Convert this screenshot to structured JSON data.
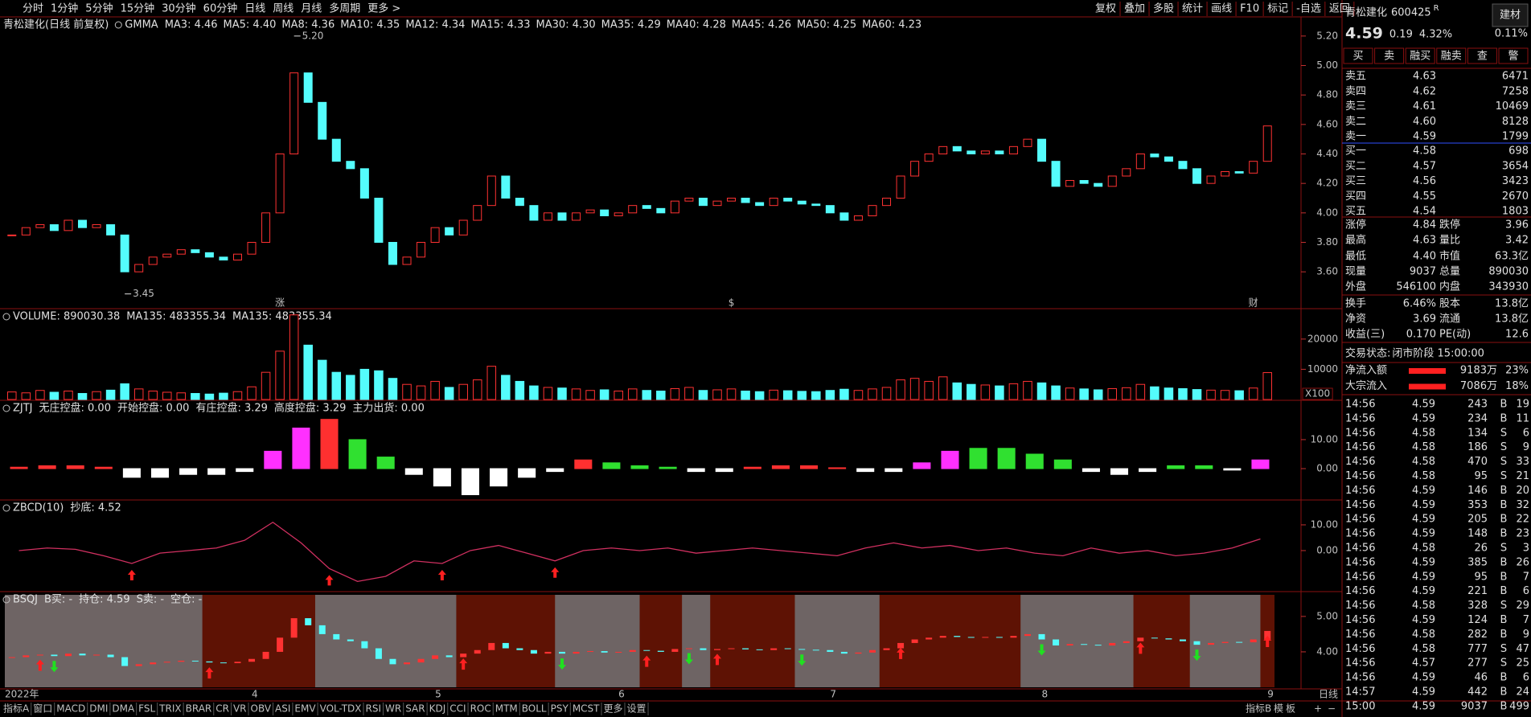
{
  "toolbar": {
    "periods": [
      "分时",
      "1分钟",
      "5分钟",
      "15分钟",
      "30分钟",
      "60分钟",
      "日线",
      "周线",
      "月线",
      "多周期",
      "更多 >"
    ],
    "active_period": 6,
    "buttons": [
      "复权",
      "叠加",
      "多股",
      "统计",
      "画线",
      "F10",
      "标记",
      "-自选",
      "返回"
    ]
  },
  "chart_data": [
    {
      "type": "candlestick",
      "title": "青松建化(日线 前复权)",
      "indicator": "GMMA",
      "legend": [
        {
          "text": "MA3: 4.46",
          "color": "#b8a8ff"
        },
        {
          "text": "MA5: 4.40",
          "color": "#b8a8ff"
        },
        {
          "text": "MA8: 4.36",
          "color": "#b8a8ff"
        },
        {
          "text": "MA10: 4.35",
          "color": "#b8a8ff"
        },
        {
          "text": "MA12: 4.34",
          "color": "#b8a8ff"
        },
        {
          "text": "MA15: 4.33",
          "color": "#b8a8ff"
        },
        {
          "text": "MA30: 4.30",
          "color": "#ff9a30"
        },
        {
          "text": "MA35: 4.29",
          "color": "#ff9a30"
        },
        {
          "text": "MA40: 4.28",
          "color": "#ff9a30"
        },
        {
          "text": "MA45: 4.26",
          "color": "#ff9a30"
        },
        {
          "text": "MA50: 4.25",
          "color": "#ff9a30"
        },
        {
          "text": "MA60: 4.23",
          "color": "#ff9a30"
        }
      ],
      "categories": [
        "2022年",
        null,
        null,
        null,
        null,
        null,
        null,
        null,
        null,
        null,
        null,
        null,
        null,
        null,
        null,
        null,
        null,
        "4",
        null,
        null,
        null,
        null,
        null,
        null,
        null,
        null,
        null,
        null,
        null,
        null,
        "5",
        null,
        null,
        null,
        null,
        null,
        null,
        null,
        null,
        null,
        null,
        null,
        null,
        "6",
        null,
        null,
        null,
        null,
        null,
        null,
        null,
        null,
        null,
        null,
        null,
        null,
        null,
        null,
        "7",
        null,
        null,
        null,
        null,
        null,
        null,
        null,
        null,
        null,
        null,
        null,
        null,
        null,
        null,
        "8",
        null,
        null,
        null,
        null,
        null,
        null,
        null,
        null,
        null,
        null,
        null,
        null,
        null,
        null,
        null,
        "9",
        null
      ],
      "closes": [
        3.85,
        3.9,
        3.92,
        3.88,
        3.95,
        3.9,
        3.92,
        3.85,
        3.6,
        3.65,
        3.7,
        3.72,
        3.75,
        3.73,
        3.7,
        3.68,
        3.72,
        3.8,
        4.0,
        4.4,
        4.95,
        4.75,
        4.5,
        4.35,
        4.3,
        4.1,
        3.8,
        3.65,
        3.7,
        3.8,
        3.9,
        3.85,
        3.95,
        4.05,
        4.25,
        4.1,
        4.05,
        3.95,
        4.0,
        3.95,
        4.0,
        4.02,
        3.98,
        4.0,
        4.05,
        4.03,
        4.0,
        4.08,
        4.1,
        4.05,
        4.08,
        4.1,
        4.07,
        4.05,
        4.1,
        4.08,
        4.06,
        4.05,
        4.0,
        3.95,
        3.98,
        4.05,
        4.1,
        4.25,
        4.35,
        4.4,
        4.45,
        4.42,
        4.4,
        4.42,
        4.4,
        4.45,
        4.5,
        4.35,
        4.18,
        4.22,
        4.2,
        4.18,
        4.25,
        4.3,
        4.4,
        4.38,
        4.35,
        4.3,
        4.2,
        4.25,
        4.28,
        4.27,
        4.35,
        4.59
      ],
      "up_color": "#ff3232",
      "down_color": "#54fcfc",
      "ylim": [
        3.35,
        5.33
      ],
      "yticks": [
        {
          "value": 3.6,
          "label": "3.60"
        },
        {
          "value": 3.8,
          "label": "3.80"
        },
        {
          "value": 4.0,
          "label": "4.00"
        },
        {
          "value": 4.2,
          "label": "4.20"
        },
        {
          "value": 4.4,
          "label": "4.40"
        },
        {
          "value": 4.6,
          "label": "4.60"
        },
        {
          "value": 4.8,
          "label": "4.80"
        },
        {
          "value": 5.0,
          "label": "5.00"
        },
        {
          "value": 5.2,
          "label": "5.20"
        }
      ],
      "annotations": [
        {
          "label": "5.20",
          "value": 5.2,
          "index": 20
        },
        {
          "label": "3.45",
          "value": 3.45,
          "index": 8
        }
      ],
      "events": [
        {
          "label": "涨",
          "index": 19,
          "color": "#ff4040"
        },
        {
          "label": "$",
          "index": 51,
          "color": "#ff4040"
        },
        {
          "label": "财",
          "index": 88,
          "color": "#5090ff"
        }
      ]
    },
    {
      "type": "bar",
      "legend": [
        {
          "text": "VOLUME: 890030.38",
          "color": "#e0e0e0"
        },
        {
          "text": "MA135: 483355.34",
          "color": "#e0e0e0"
        },
        {
          "text": "MA135: 483355.34",
          "color": "#ffd000"
        }
      ],
      "values": [
        2500,
        2200,
        3000,
        2400,
        2800,
        2000,
        2600,
        3100,
        5200,
        3500,
        2800,
        2400,
        2200,
        2000,
        1800,
        2100,
        2600,
        4200,
        9000,
        16000,
        28000,
        18000,
        13000,
        9000,
        8000,
        10000,
        9500,
        7000,
        5000,
        4500,
        6000,
        4000,
        5000,
        6500,
        11000,
        8000,
        6000,
        4500,
        4000,
        3800,
        3500,
        3000,
        3200,
        2800,
        3500,
        3000,
        2800,
        3600,
        4000,
        3000,
        3200,
        3500,
        2800,
        2600,
        3100,
        2900,
        2700,
        2600,
        3000,
        3400,
        3000,
        3500,
        4000,
        6500,
        7000,
        6000,
        7500,
        5500,
        5000,
        4800,
        4500,
        5200,
        6000,
        5500,
        4500,
        3800,
        3500,
        3200,
        3600,
        3900,
        5000,
        4200,
        3800,
        3600,
        3300,
        3100,
        3000,
        2900,
        3800,
        8900
      ],
      "ylim": [
        0,
        29000
      ],
      "yticks": [
        10000,
        20000
      ],
      "unit": "X100"
    },
    {
      "type": "bar",
      "legend": [
        {
          "text": "ZJTJ",
          "color": "#e0e0e0"
        },
        {
          "text": "无庄控盘: 0.00",
          "color": "#e0e0e0"
        },
        {
          "text": "开始控盘: 0.00",
          "color": "#a8a000"
        },
        {
          "text": "有庄控盘: 3.29",
          "color": "#ff3030"
        },
        {
          "text": "高度控盘: 3.29",
          "color": "#ff40ff"
        },
        {
          "text": "主力出货: 0.00",
          "color": "#30e030"
        }
      ],
      "values": [
        0.5,
        1,
        1,
        0.5,
        -3,
        -3,
        -2,
        -2,
        -1,
        6,
        14,
        17,
        10,
        4,
        -2,
        -6,
        -9,
        -6,
        -3,
        -1,
        3,
        2,
        1,
        0.5,
        -1,
        -1,
        0.5,
        1,
        1,
        0.3,
        -1,
        -1,
        2,
        6,
        7,
        7,
        5,
        3,
        -1,
        -2,
        -1,
        1,
        1,
        -0.5,
        3
      ],
      "colors": [
        "#ff3030",
        "#ff3030",
        "#ff3030",
        "#ff3030",
        "#ffffff",
        "#ffffff",
        "#ffffff",
        "#ffffff",
        "#ffffff",
        "#ff30ff",
        "#ff30ff",
        "#ff3030",
        "#30e030",
        "#30e030",
        "#ffffff",
        "#ffffff",
        "#ffffff",
        "#ffffff",
        "#ffffff",
        "#ffffff",
        "#ff3030",
        "#30e030",
        "#30e030",
        "#30e030",
        "#ffffff",
        "#ffffff",
        "#ff3030",
        "#ff3030",
        "#ff3030",
        "#ff3030",
        "#ffffff",
        "#ffffff",
        "#ff30ff",
        "#ff30ff",
        "#30e030",
        "#30e030",
        "#30e030",
        "#30e030",
        "#ffffff",
        "#ffffff",
        "#ffffff",
        "#30e030",
        "#30e030",
        "#ffffff",
        "#ff30ff"
      ],
      "ylim": [
        -9.7,
        21.9
      ],
      "yticks": [
        {
          "value": 0,
          "label": "0.00"
        },
        {
          "value": 10,
          "label": "10.00"
        }
      ]
    },
    {
      "type": "line",
      "legend": [
        {
          "text": "ZBCD(10)",
          "color": "#e0e0e0"
        },
        {
          "text": "抄底: 4.52",
          "color": "#ff40a0"
        }
      ],
      "values": [
        0,
        1,
        0.5,
        -2,
        -5,
        -1,
        0,
        1,
        4,
        11,
        3,
        -7,
        -12,
        -10,
        -4,
        -5,
        0,
        2,
        -1,
        -4,
        0,
        1,
        0,
        1,
        -1,
        0,
        1,
        0,
        -1,
        -2,
        1,
        3,
        1,
        2,
        0,
        1,
        -1,
        -2,
        1,
        -1,
        0,
        -2,
        -1,
        1,
        4.52
      ],
      "color": "#d03060",
      "signals": [
        4,
        11,
        15,
        19
      ],
      "ylim": [
        -14.7,
        17.8
      ],
      "yticks": [
        {
          "value": 0,
          "label": "0.00"
        },
        {
          "value": 10,
          "label": "10.00"
        }
      ]
    },
    {
      "type": "signal",
      "legend": [
        {
          "text": "BSQJ",
          "color": "#e0e0e0"
        },
        {
          "text": "B买: -",
          "color": "#ff40ff"
        },
        {
          "text": "持仓: 4.59",
          "color": "#ff3030"
        },
        {
          "text": "S卖: -",
          "color": "#e0e0e0"
        },
        {
          "text": "空仓: -",
          "color": "#30e030"
        }
      ],
      "hold": [
        [
          14,
          22
        ],
        [
          32,
          39
        ],
        [
          45,
          48
        ],
        [
          50,
          56
        ],
        [
          62,
          72
        ],
        [
          80,
          84
        ],
        [
          89,
          90
        ]
      ],
      "buy_signals": [
        2,
        14,
        32,
        45,
        50,
        63,
        80,
        89
      ],
      "sell_signals": [
        3,
        39,
        48,
        56,
        73,
        84
      ],
      "ylim": [
        3.0,
        5.61
      ],
      "yticks": [
        {
          "value": 4,
          "label": "4.00"
        },
        {
          "value": 5,
          "label": "5.00"
        }
      ]
    }
  ],
  "quote": {
    "name": "青松建化",
    "code": "600425",
    "flag": "R",
    "price": "4.59",
    "change": "0.19",
    "pct": "4.32%",
    "sector": "建材",
    "sector_pct": "0.11%",
    "buttons": [
      {
        "text": "买",
        "color": "#ff4040"
      },
      {
        "text": "卖",
        "color": "#54fcfc"
      },
      {
        "text": "融买",
        "color": "#ff4040"
      },
      {
        "text": "融卖",
        "color": "#54fcfc"
      },
      {
        "text": "查",
        "color": "#e0e0e0"
      },
      {
        "text": "警",
        "color": "#e0e0e0"
      }
    ],
    "asks": [
      [
        "卖五",
        "4.63",
        "6471"
      ],
      [
        "卖四",
        "4.62",
        "7258"
      ],
      [
        "卖三",
        "4.61",
        "10469"
      ],
      [
        "卖二",
        "4.60",
        "8128"
      ],
      [
        "卖一",
        "4.59",
        "1799"
      ]
    ],
    "bids": [
      [
        "买一",
        "4.58",
        "698"
      ],
      [
        "买二",
        "4.57",
        "3654"
      ],
      [
        "买三",
        "4.56",
        "3423"
      ],
      [
        "买四",
        "4.55",
        "2670"
      ],
      [
        "买五",
        "4.54",
        "1803"
      ]
    ],
    "stats": [
      {
        "cells": [
          "涨停",
          "4.84",
          "跌停",
          "3.96"
        ],
        "colors": [
          "#ff4040",
          "#40ff40"
        ]
      },
      {
        "cells": [
          "最高",
          "4.63",
          "量比",
          "3.42"
        ],
        "colors": [
          "#ff4040",
          "#ff40ff"
        ]
      },
      {
        "cells": [
          "最低",
          "4.40",
          "市值",
          "63.3亿"
        ],
        "colors": [
          "#ffffff",
          "#e0e0e0"
        ]
      },
      {
        "cells": [
          "现量",
          "9037",
          "总量",
          "890030"
        ],
        "colors": [
          "#ff40ff",
          "#e0e0e0"
        ]
      },
      {
        "cells": [
          "外盘",
          "546100",
          "内盘",
          "343930"
        ],
        "colors": [
          "#ff4040",
          "#40ff40"
        ]
      },
      {
        "cells": [
          "换手",
          "6.46%",
          "股本",
          "13.8亿"
        ],
        "colors": [
          "#e0e0e0",
          "#e0e0e0"
        ]
      },
      {
        "cells": [
          "净资",
          "3.69",
          "流通",
          "13.8亿"
        ],
        "colors": [
          "#e0e0e0",
          "#e0e0e0"
        ]
      },
      {
        "cells": [
          "收益(三)",
          "0.170",
          "PE(动)",
          "12.6"
        ],
        "colors": [
          "#e0e0e0",
          "#e0e0e0"
        ]
      }
    ],
    "status_label": "交易状态:",
    "status": "闭市阶段 15:00:00",
    "flows": [
      [
        "净流入额",
        "9183万",
        "23%"
      ],
      [
        "大宗流入",
        "7086万",
        "18%"
      ]
    ],
    "trades": [
      [
        "14:56",
        "4.59",
        "243",
        "B",
        "19"
      ],
      [
        "14:56",
        "4.59",
        "234",
        "B",
        "11"
      ],
      [
        "14:56",
        "4.58",
        "134",
        "S",
        "6"
      ],
      [
        "14:56",
        "4.58",
        "186",
        "S",
        "9"
      ],
      [
        "14:56",
        "4.58",
        "470",
        "S",
        "33"
      ],
      [
        "14:56",
        "4.58",
        "95",
        "S",
        "21"
      ],
      [
        "14:56",
        "4.59",
        "146",
        "B",
        "20"
      ],
      [
        "14:56",
        "4.59",
        "353",
        "B",
        "32"
      ],
      [
        "14:56",
        "4.59",
        "205",
        "B",
        "22"
      ],
      [
        "14:56",
        "4.59",
        "148",
        "B",
        "23"
      ],
      [
        "14:56",
        "4.58",
        "26",
        "S",
        "3"
      ],
      [
        "14:56",
        "4.59",
        "385",
        "B",
        "26"
      ],
      [
        "14:56",
        "4.59",
        "95",
        "B",
        "7"
      ],
      [
        "14:56",
        "4.59",
        "221",
        "B",
        "6"
      ],
      [
        "14:56",
        "4.58",
        "328",
        "S",
        "29"
      ],
      [
        "14:56",
        "4.59",
        "124",
        "B",
        "7"
      ],
      [
        "14:56",
        "4.58",
        "282",
        "B",
        "9"
      ],
      [
        "14:56",
        "4.58",
        "777",
        "S",
        "47"
      ],
      [
        "14:56",
        "4.57",
        "277",
        "S",
        "25"
      ],
      [
        "14:56",
        "4.59",
        "46",
        "B",
        "6"
      ],
      [
        "14:57",
        "4.59",
        "442",
        "B",
        "24"
      ],
      [
        "15:00",
        "4.59",
        "9037",
        "B",
        "499"
      ]
    ]
  },
  "tabs": [
    "指标A",
    "窗口",
    "MACD",
    "DMI",
    "DMA",
    "FSL",
    "TRIX",
    "BRAR",
    "CR",
    "VR",
    "OBV",
    "ASI",
    "EMV",
    "VOL-TDX",
    "RSI",
    "WR",
    "SAR",
    "KDJ",
    "CCI",
    "ROC",
    "MTM",
    "BOLL",
    "PSY",
    "MCST",
    "更多",
    "设置"
  ],
  "tabs_right": [
    "指标B",
    "模",
    "板",
    "+",
    "−"
  ],
  "period_label": "日线"
}
